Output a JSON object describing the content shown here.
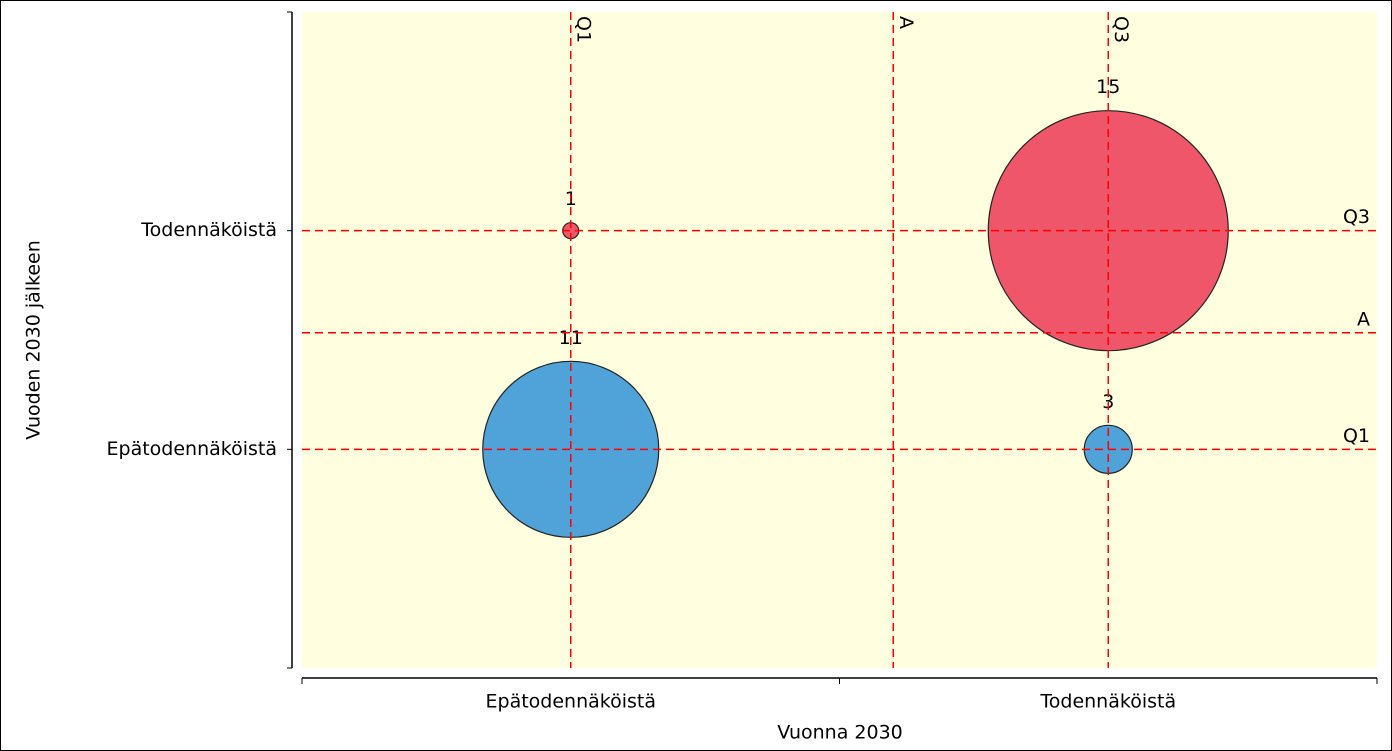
{
  "chart_data": {
    "type": "bubble",
    "x_label": "Vuonna 2030",
    "y_label": "Vuoden 2030 jälkeen",
    "xlim": [
      -0.5,
      1.5
    ],
    "ylim": [
      -1,
      2
    ],
    "xticks": [
      {
        "value": 0,
        "label": "Epätodennäköistä"
      },
      {
        "value": 1,
        "label": "Todennäköistä"
      }
    ],
    "yticks": [
      {
        "value": 0,
        "label": "Epätodennäköistä"
      },
      {
        "value": 1,
        "label": "Todennäköistä"
      }
    ],
    "series": [
      {
        "color": "#f0566a",
        "x": [
          0,
          1
        ],
        "y": [
          1,
          1
        ],
        "sizes": [
          1,
          15
        ]
      },
      {
        "color": "#4fa3d9",
        "x": [
          0,
          1
        ],
        "y": [
          0,
          0
        ],
        "sizes": [
          11,
          3
        ]
      }
    ],
    "reference_lines": {
      "color": "#ff0000",
      "x": [
        {
          "value": 0,
          "label": "Q1"
        },
        {
          "value": 0.6,
          "label": "A"
        },
        {
          "value": 1,
          "label": "Q3"
        }
      ],
      "y": [
        {
          "value": 1,
          "label": "Q3"
        },
        {
          "value": 0.533,
          "label": "A"
        },
        {
          "value": 0,
          "label": "Q1"
        }
      ]
    },
    "background": "#ffffe0"
  }
}
